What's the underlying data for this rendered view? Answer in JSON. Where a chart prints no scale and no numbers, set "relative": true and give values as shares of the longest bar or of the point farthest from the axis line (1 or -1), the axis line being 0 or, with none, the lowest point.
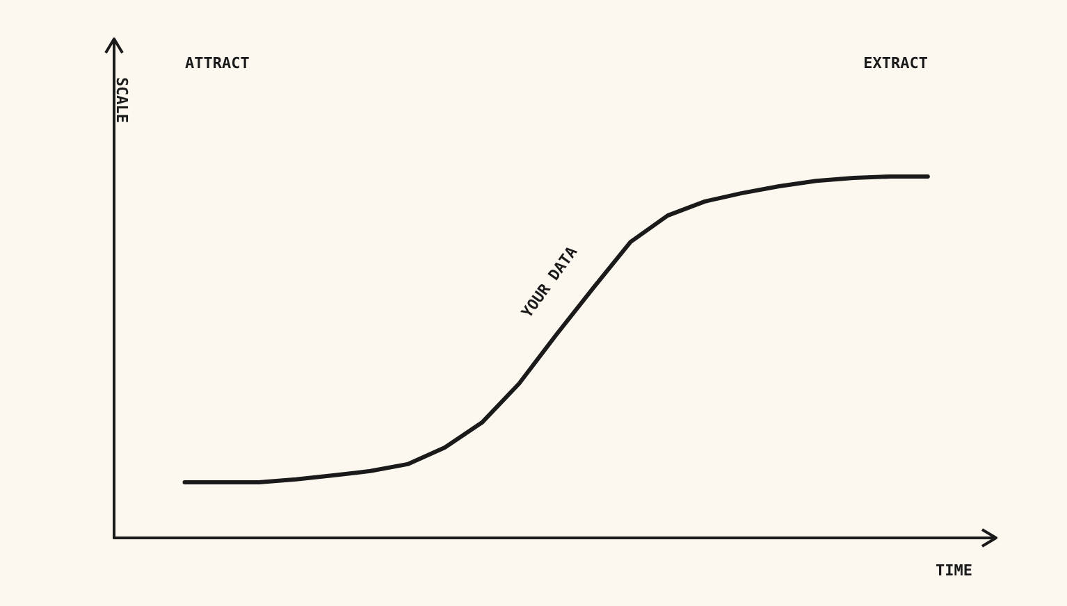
{
  "chart_data": {
    "type": "line",
    "relative": true,
    "xlabel": "TIME",
    "ylabel": "SCALE",
    "annotations": [
      "ATTRACT",
      "EXTRACT",
      "YOUR DATA"
    ],
    "categories": [
      null,
      null,
      null,
      null,
      null,
      null,
      null,
      null,
      null,
      null,
      null,
      null,
      null,
      null,
      null,
      null,
      null,
      null,
      null,
      null,
      null
    ],
    "series": [
      {
        "color": "#1a1a1a",
        "values": [
          0.154,
          0.154,
          0.154,
          0.162,
          0.173,
          0.185,
          0.204,
          0.25,
          0.319,
          0.427,
          0.562,
          0.692,
          0.819,
          0.892,
          0.931,
          0.954,
          0.973,
          0.988,
          0.996,
          1,
          1
        ]
      }
    ],
    "grid": false,
    "marker": "none",
    "line_style": "solid"
  }
}
